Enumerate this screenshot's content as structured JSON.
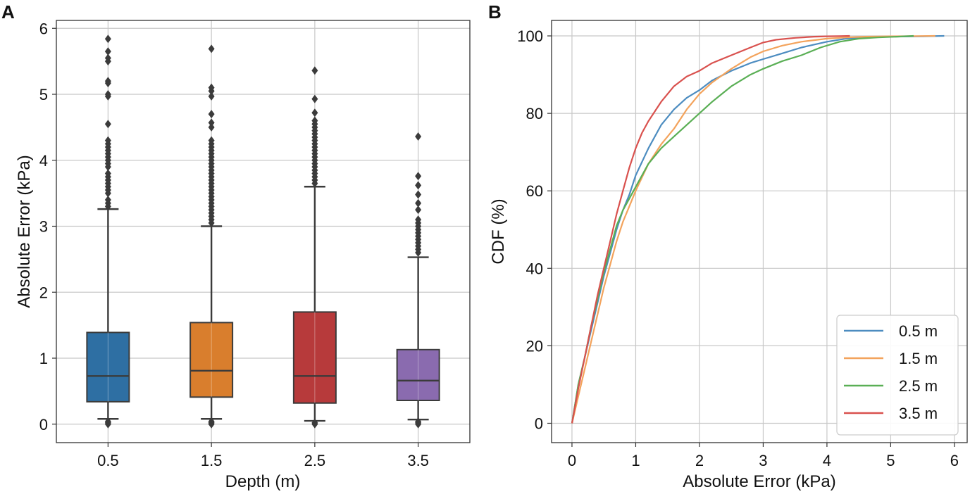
{
  "chart_data": [
    {
      "panel": "A",
      "type": "box",
      "xlabel": "Depth (m)",
      "ylabel": "Absolute Error (kPa)",
      "ylim": [
        -0.28,
        6.12
      ],
      "yticks": [
        0,
        1,
        2,
        3,
        4,
        5,
        6
      ],
      "grid": true,
      "categories": [
        "0.5",
        "1.5",
        "2.5",
        "3.5"
      ],
      "boxes": [
        {
          "label": "0.5",
          "color": "#2e6fa3",
          "q1": 0.34,
          "median": 0.73,
          "q3": 1.39,
          "whisker_low": 0.08,
          "whisker_high": 3.26,
          "outliers_high": [
            3.3,
            3.35,
            3.4,
            3.5,
            3.55,
            3.6,
            3.65,
            3.7,
            3.75,
            3.8,
            3.9,
            3.95,
            4.0,
            4.05,
            4.1,
            4.15,
            4.2,
            4.25,
            4.3,
            4.55,
            4.97,
            5.0,
            5.17,
            5.2,
            5.5,
            5.55,
            5.65,
            5.84
          ],
          "outliers_low": [
            0.0,
            0.02,
            0.04
          ]
        },
        {
          "label": "1.5",
          "color": "#d97e2d",
          "q1": 0.41,
          "median": 0.81,
          "q3": 1.54,
          "whisker_low": 0.08,
          "whisker_high": 3.0,
          "outliers_high": [
            3.05,
            3.1,
            3.15,
            3.2,
            3.25,
            3.3,
            3.35,
            3.4,
            3.45,
            3.5,
            3.55,
            3.6,
            3.65,
            3.7,
            3.75,
            3.8,
            3.85,
            3.9,
            3.95,
            4.0,
            4.05,
            4.1,
            4.15,
            4.2,
            4.25,
            4.3,
            4.5,
            4.57,
            4.7,
            4.97,
            5.05,
            5.1,
            5.69
          ],
          "outliers_low": [
            0.0,
            0.02,
            0.04
          ]
        },
        {
          "label": "2.5",
          "color": "#b73a3b",
          "q1": 0.32,
          "median": 0.73,
          "q3": 1.7,
          "whisker_low": 0.05,
          "whisker_high": 3.6,
          "outliers_high": [
            3.65,
            3.7,
            3.75,
            3.8,
            3.85,
            3.9,
            3.95,
            4.0,
            4.05,
            4.1,
            4.15,
            4.2,
            4.25,
            4.3,
            4.35,
            4.4,
            4.45,
            4.5,
            4.55,
            4.6,
            4.72,
            4.93,
            5.36
          ],
          "outliers_low": [
            0.0,
            0.02
          ]
        },
        {
          "label": "3.5",
          "color": "#8a6baf",
          "q1": 0.36,
          "median": 0.66,
          "q3": 1.13,
          "whisker_low": 0.07,
          "whisker_high": 2.53,
          "outliers_high": [
            2.6,
            2.65,
            2.7,
            2.75,
            2.8,
            2.85,
            2.9,
            2.95,
            3.0,
            3.05,
            3.1,
            3.25,
            3.35,
            3.48,
            3.62,
            3.76,
            4.36
          ],
          "outliers_low": [
            0.0,
            0.02,
            0.04
          ]
        }
      ]
    },
    {
      "panel": "B",
      "type": "line",
      "xlabel": "Absolute Error (kPa)",
      "ylabel": "CDF (%)",
      "xlim": [
        -0.32,
        6.2
      ],
      "ylim": [
        -5,
        104
      ],
      "xticks": [
        0,
        1,
        2,
        3,
        4,
        5,
        6
      ],
      "yticks": [
        0,
        20,
        40,
        60,
        80,
        100
      ],
      "grid": true,
      "legend_position": "lower-right",
      "series": [
        {
          "name": "0.5 m",
          "color": "#4c8cc0",
          "x": [
            0,
            0.1,
            0.2,
            0.3,
            0.4,
            0.5,
            0.6,
            0.7,
            0.8,
            0.9,
            1.0,
            1.2,
            1.4,
            1.6,
            1.8,
            2.0,
            2.2,
            2.5,
            2.8,
            3.0,
            3.3,
            3.6,
            4.0,
            4.3,
            4.6,
            5.0,
            5.5,
            5.84
          ],
          "y": [
            0,
            10,
            17,
            24,
            31,
            38,
            44,
            50,
            55,
            59,
            64,
            71,
            77,
            81,
            84,
            86,
            88.5,
            91,
            93,
            94,
            95.5,
            97,
            98.5,
            99.3,
            99.6,
            99.8,
            99.9,
            100
          ]
        },
        {
          "name": "1.5 m",
          "color": "#f3a35c",
          "x": [
            0,
            0.1,
            0.2,
            0.3,
            0.4,
            0.5,
            0.6,
            0.7,
            0.8,
            0.9,
            1.0,
            1.2,
            1.4,
            1.6,
            1.8,
            2.0,
            2.2,
            2.5,
            2.8,
            3.0,
            3.3,
            3.6,
            4.0,
            4.3,
            4.6,
            5.0,
            5.4,
            5.7
          ],
          "y": [
            0,
            7,
            14,
            21,
            28,
            35,
            41,
            47,
            52,
            56,
            60,
            67,
            72,
            76,
            81,
            85,
            88,
            91.5,
            94.5,
            96,
            97.5,
            98.5,
            99.3,
            99.6,
            99.8,
            99.9,
            99.95,
            100
          ]
        },
        {
          "name": "2.5 m",
          "color": "#5aaf55",
          "x": [
            0,
            0.1,
            0.2,
            0.3,
            0.4,
            0.5,
            0.6,
            0.7,
            0.8,
            0.9,
            1.0,
            1.2,
            1.4,
            1.6,
            1.8,
            2.0,
            2.2,
            2.5,
            2.8,
            3.0,
            3.3,
            3.6,
            3.9,
            4.2,
            4.5,
            4.8,
            5.1,
            5.36
          ],
          "y": [
            0,
            10,
            17,
            25,
            32,
            39,
            45,
            51,
            55,
            58,
            61,
            67,
            71,
            74,
            77,
            80,
            83,
            87,
            90,
            91.5,
            93.5,
            95,
            97,
            98.5,
            99.3,
            99.6,
            99.8,
            100
          ]
        },
        {
          "name": "3.5 m",
          "color": "#d9514e",
          "x": [
            0,
            0.1,
            0.2,
            0.3,
            0.4,
            0.5,
            0.6,
            0.7,
            0.8,
            0.9,
            1.0,
            1.1,
            1.2,
            1.4,
            1.6,
            1.8,
            2.0,
            2.2,
            2.5,
            2.8,
            3.0,
            3.2,
            3.5,
            3.8,
            4.0,
            4.2,
            4.36
          ],
          "y": [
            0,
            9,
            17,
            25,
            33,
            40,
            47,
            54,
            60,
            66,
            71,
            75,
            78,
            83,
            87,
            89.5,
            91,
            93,
            95,
            97,
            98.3,
            99,
            99.5,
            99.8,
            99.9,
            99.95,
            100
          ]
        }
      ]
    }
  ]
}
